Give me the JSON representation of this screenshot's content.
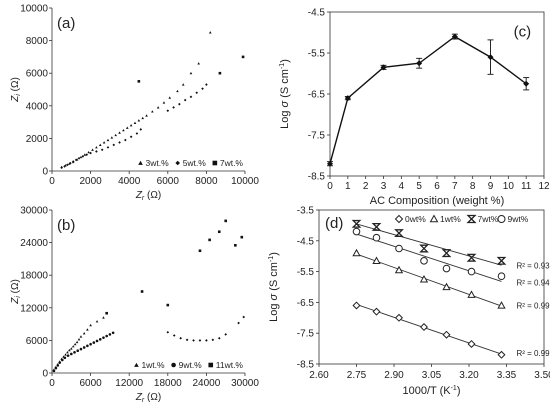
{
  "chart_data": [
    {
      "id": "a",
      "type": "scatter",
      "panel_label": "(a)",
      "xlabel_main": "Z",
      "xlabel_sub": "r",
      "xlabel_unit": " (Ω)",
      "ylabel_main": "Z",
      "ylabel_sub": "i",
      "ylabel_unit": " (Ω)",
      "xlim": [
        0,
        10000
      ],
      "ylim": [
        0,
        10000
      ],
      "xticks": [
        0,
        2000,
        4000,
        6000,
        8000,
        10000
      ],
      "yticks": [
        0,
        2000,
        4000,
        6000,
        8000,
        10000
      ],
      "grid": false,
      "legend_position": "bottom-right",
      "series": [
        {
          "name": "3wt.%",
          "marker": "triangle",
          "x": [
            500,
            700,
            900,
            1100,
            1300,
            1500,
            1700,
            1900,
            2100,
            2300,
            2500,
            2700,
            2900,
            3100,
            3300,
            3500,
            3700,
            3900,
            4100,
            4300,
            4500,
            4700,
            4900,
            5200,
            5500,
            5800,
            6100,
            6500,
            6800,
            7200,
            7600,
            8200
          ],
          "y": [
            250,
            350,
            450,
            550,
            700,
            850,
            1000,
            1150,
            1300,
            1450,
            1600,
            1750,
            1900,
            2050,
            2200,
            2350,
            2500,
            2650,
            2800,
            2950,
            3100,
            3250,
            3400,
            3650,
            3900,
            4200,
            4500,
            4900,
            5300,
            6000,
            6600,
            8500
          ]
        },
        {
          "name": "5wt.%",
          "marker": "diamond",
          "x": [
            500,
            650,
            800,
            950,
            1100,
            1250,
            1400,
            1600,
            1800,
            2000,
            2300,
            2600,
            2900,
            3200,
            3500,
            3800,
            4100,
            4400,
            4600,
            6000,
            6300,
            6600,
            6900,
            7200,
            7500,
            7800,
            8000
          ],
          "y": [
            200,
            280,
            380,
            480,
            580,
            680,
            780,
            900,
            1000,
            1100,
            1200,
            1300,
            1450,
            1600,
            1750,
            1900,
            2100,
            2300,
            2550,
            3700,
            3900,
            4100,
            4350,
            4550,
            4800,
            5050,
            5300
          ]
        },
        {
          "name": "7wt.%",
          "marker": "square",
          "x": [
            4500,
            8700,
            9900
          ],
          "y": [
            5500,
            6000,
            7000
          ]
        }
      ]
    },
    {
      "id": "b",
      "type": "scatter",
      "panel_label": "(b)",
      "xlabel_main": "Z",
      "xlabel_sub": "r",
      "xlabel_unit": " (Ω)",
      "ylabel_main": "Z",
      "ylabel_sub": "i",
      "ylabel_unit": " (Ω)",
      "xlim": [
        0,
        30000
      ],
      "ylim": [
        0,
        30000
      ],
      "xticks": [
        0,
        6000,
        12000,
        18000,
        24000,
        30000
      ],
      "yticks": [
        0,
        6000,
        12000,
        18000,
        24000,
        30000
      ],
      "grid": false,
      "legend_position": "bottom-right",
      "series": [
        {
          "name": "1wt.%",
          "marker": "triangle",
          "x": [
            300,
            600,
            900,
            1200,
            1500,
            1800,
            2100,
            2400,
            2700,
            3000,
            3300,
            3600,
            3900,
            4200,
            4500,
            5000,
            5500,
            6000,
            7000,
            8000
          ],
          "y": [
            600,
            1100,
            1600,
            2100,
            2600,
            3000,
            3400,
            3800,
            4200,
            4500,
            4900,
            5300,
            5700,
            6200,
            6700,
            7300,
            8000,
            8800,
            9500,
            10200
          ]
        },
        {
          "name": "9wt.%",
          "marker": "circle",
          "x": [
            300,
            600,
            900,
            1200,
            1600,
            2000,
            2500,
            3000,
            3500,
            4000,
            4500,
            5000,
            5500,
            6000,
            6500,
            7000,
            7500,
            8000,
            8500,
            9000,
            9500
          ],
          "y": [
            400,
            900,
            1400,
            1900,
            2400,
            2800,
            3200,
            3500,
            3800,
            4100,
            4400,
            4700,
            5000,
            5300,
            5600,
            5900,
            6200,
            6500,
            6800,
            7100,
            7400
          ]
        },
        {
          "name": "11wt.%",
          "marker": "square",
          "x": [
            8500,
            14000,
            18000,
            23000,
            24500,
            26000,
            27000,
            28500,
            29500
          ],
          "y": [
            11000,
            15000,
            12500,
            22500,
            24500,
            26000,
            28000,
            23500,
            25000
          ]
        },
        {
          "name": "",
          "marker": "diamond",
          "x": [
            18000,
            19000,
            20000,
            21000,
            22000,
            23000,
            24000,
            25000,
            26000,
            27000,
            29000,
            29800
          ],
          "y": [
            7500,
            6900,
            6400,
            6100,
            6000,
            6000,
            6000,
            6100,
            6400,
            7100,
            9200,
            10300
          ]
        }
      ]
    },
    {
      "id": "c",
      "type": "line",
      "panel_label": "(c)",
      "xlabel": "AC Composition (weight %)",
      "ylabel_main": "Log σ",
      "ylabel_unit": " (S cm",
      "ylabel_sup": "-1",
      "ylabel_close": ")",
      "xlim": [
        0,
        12
      ],
      "ylim": [
        -8.5,
        -4.5
      ],
      "xticks": [
        0,
        1,
        2,
        3,
        4,
        5,
        6,
        7,
        8,
        9,
        10,
        11,
        12
      ],
      "yticks": [
        -4.5,
        -5.5,
        -6.5,
        -7.5,
        -8.5
      ],
      "grid": false,
      "x": [
        0,
        1,
        3,
        5,
        7,
        9,
        11
      ],
      "y": [
        -8.2,
        -6.6,
        -5.85,
        -5.75,
        -5.1,
        -5.6,
        -6.25
      ],
      "yerr": [
        0.05,
        0.04,
        0.05,
        0.12,
        0.06,
        0.42,
        0.15
      ]
    },
    {
      "id": "d",
      "type": "scatter",
      "panel_label": "(d)",
      "xlabel": "1000/T (K",
      "xlabel_sup": "-1",
      "xlabel_close": ")",
      "ylabel_main": "Log σ",
      "ylabel_unit": " (S cm",
      "ylabel_sup": "-1",
      "ylabel_close": ")",
      "xlim": [
        2.6,
        3.5
      ],
      "ylim": [
        -8.5,
        -3.5
      ],
      "xticks": [
        "2.60",
        "2.75",
        "2.90",
        "3.05",
        "3.20",
        "3.35",
        "3.50"
      ],
      "yticks": [
        "-3.5",
        "-4.5",
        "-5.5",
        "-6.5",
        "-7.5",
        "-8.5"
      ],
      "grid": false,
      "legend_position": "top",
      "x": [
        2.75,
        2.83,
        2.92,
        3.02,
        3.11,
        3.21,
        3.33
      ],
      "series": [
        {
          "name": "0wt%",
          "marker": "diamond",
          "y": [
            -6.6,
            -6.8,
            -7.0,
            -7.3,
            -7.55,
            -7.85,
            -8.2
          ],
          "r2": "R² = 0.99"
        },
        {
          "name": "1wt%",
          "marker": "triangle",
          "y": [
            -4.9,
            -5.15,
            -5.45,
            -5.75,
            -6.0,
            -6.25,
            -6.6
          ],
          "r2": "R² = 0.99"
        },
        {
          "name": "7wt%",
          "marker": "star",
          "y": [
            -3.95,
            -4.05,
            -4.25,
            -4.75,
            -4.9,
            -5.05,
            -5.15
          ],
          "r2": "R² = 0.93"
        },
        {
          "name": "9wt%",
          "marker": "circle",
          "y": [
            -4.2,
            -4.4,
            -4.75,
            -5.15,
            -5.4,
            -5.5,
            -5.65
          ],
          "r2": "R² = 0.94"
        }
      ]
    }
  ]
}
